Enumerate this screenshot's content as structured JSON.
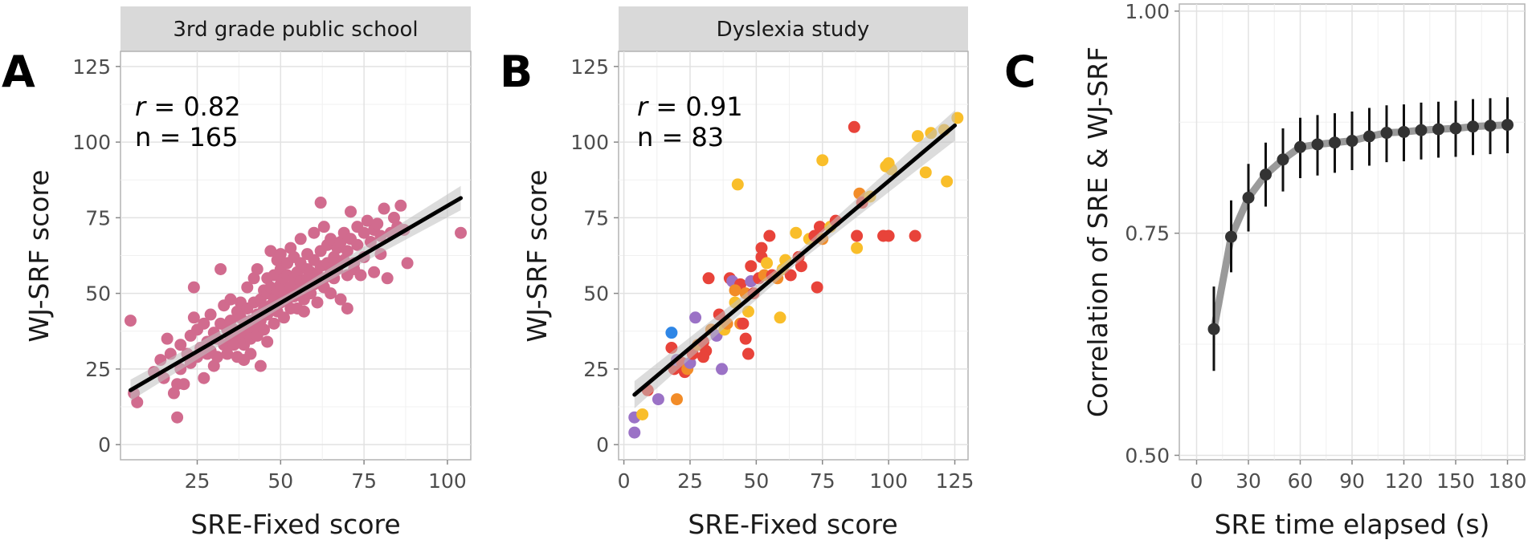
{
  "chart_data": [
    {
      "panel_label": "A",
      "type": "scatter",
      "strip_title": "3rd grade public school",
      "xlabel": "SRE-Fixed score",
      "ylabel": "WJ-SRF score",
      "xlim": [
        2,
        107
      ],
      "ylim": [
        -5,
        130
      ],
      "xticks": [
        25,
        50,
        75,
        100
      ],
      "yticks": [
        0,
        25,
        50,
        75,
        100,
        125
      ],
      "annotation": {
        "r_label": "r",
        "r_value": " = 0.82",
        "n_text": "n = 165"
      },
      "point_color": "#D16B8E",
      "fit_line": {
        "x": [
          5,
          104
        ],
        "y": [
          18,
          81.5
        ]
      },
      "points": [
        [
          5,
          41
        ],
        [
          6,
          17
        ],
        [
          7,
          14
        ],
        [
          12,
          24
        ],
        [
          14,
          28
        ],
        [
          15,
          22
        ],
        [
          16,
          35
        ],
        [
          17,
          30
        ],
        [
          18,
          17
        ],
        [
          19,
          9
        ],
        [
          19,
          20
        ],
        [
          20,
          25
        ],
        [
          20,
          33
        ],
        [
          21,
          20
        ],
        [
          22,
          30
        ],
        [
          23,
          27
        ],
        [
          23,
          36
        ],
        [
          24,
          52
        ],
        [
          24,
          42
        ],
        [
          25,
          29
        ],
        [
          25,
          38
        ],
        [
          26,
          32
        ],
        [
          27,
          40
        ],
        [
          27,
          22
        ],
        [
          28,
          34
        ],
        [
          29,
          31
        ],
        [
          29,
          43
        ],
        [
          30,
          37
        ],
        [
          30,
          26
        ],
        [
          31,
          29
        ],
        [
          31,
          35
        ],
        [
          32,
          58
        ],
        [
          32,
          40
        ],
        [
          33,
          33
        ],
        [
          33,
          46
        ],
        [
          34,
          38
        ],
        [
          34,
          30
        ],
        [
          35,
          41
        ],
        [
          35,
          35
        ],
        [
          35,
          48
        ],
        [
          36,
          33
        ],
        [
          36,
          38
        ],
        [
          37,
          44
        ],
        [
          37,
          29
        ],
        [
          38,
          36
        ],
        [
          38,
          42
        ],
        [
          38,
          47
        ],
        [
          39,
          39
        ],
        [
          39,
          33
        ],
        [
          40,
          37
        ],
        [
          40,
          45
        ],
        [
          40,
          52
        ],
        [
          41,
          41
        ],
        [
          41,
          35
        ],
        [
          41,
          30
        ],
        [
          42,
          47
        ],
        [
          42,
          39
        ],
        [
          42,
          55
        ],
        [
          43,
          43
        ],
        [
          43,
          36
        ],
        [
          43,
          58
        ],
        [
          44,
          48
        ],
        [
          44,
          41
        ],
        [
          44,
          26
        ],
        [
          45,
          45
        ],
        [
          45,
          51
        ],
        [
          45,
          38
        ],
        [
          46,
          50
        ],
        [
          46,
          43
        ],
        [
          46,
          55
        ],
        [
          47,
          46
        ],
        [
          47,
          52
        ],
        [
          47,
          64
        ],
        [
          48,
          48
        ],
        [
          48,
          56
        ],
        [
          48,
          40
        ],
        [
          49,
          51
        ],
        [
          49,
          44
        ],
        [
          49,
          61
        ],
        [
          50,
          53
        ],
        [
          50,
          47
        ],
        [
          50,
          58
        ],
        [
          50,
          63
        ],
        [
          51,
          50
        ],
        [
          51,
          55
        ],
        [
          51,
          42
        ],
        [
          52,
          48
        ],
        [
          52,
          56
        ],
        [
          52,
          60
        ],
        [
          53,
          52
        ],
        [
          53,
          45
        ],
        [
          53,
          65
        ],
        [
          54,
          55
        ],
        [
          54,
          49
        ],
        [
          54,
          62
        ],
        [
          55,
          57
        ],
        [
          55,
          51
        ],
        [
          55,
          45
        ],
        [
          56,
          54
        ],
        [
          56,
          60
        ],
        [
          56,
          68
        ],
        [
          57,
          52
        ],
        [
          57,
          48
        ],
        [
          58,
          58
        ],
        [
          58,
          55
        ],
        [
          58,
          63
        ],
        [
          59,
          50
        ],
        [
          59,
          57
        ],
        [
          60,
          61
        ],
        [
          60,
          53
        ],
        [
          60,
          70
        ],
        [
          61,
          56
        ],
        [
          61,
          47
        ],
        [
          62,
          59
        ],
        [
          62,
          64
        ],
        [
          62,
          80
        ],
        [
          63,
          55
        ],
        [
          63,
          52
        ],
        [
          63,
          72
        ],
        [
          64,
          60
        ],
        [
          64,
          66
        ],
        [
          65,
          57
        ],
        [
          65,
          50
        ],
        [
          65,
          68
        ],
        [
          66,
          62
        ],
        [
          66,
          55
        ],
        [
          67,
          65
        ],
        [
          67,
          58
        ],
        [
          68,
          67
        ],
        [
          68,
          48
        ],
        [
          69,
          61
        ],
        [
          69,
          70
        ],
        [
          70,
          56
        ],
        [
          70,
          64
        ],
        [
          71,
          68
        ],
        [
          71,
          77
        ],
        [
          72,
          58
        ],
        [
          72,
          60
        ],
        [
          73,
          72
        ],
        [
          73,
          66
        ],
        [
          74,
          56
        ],
        [
          75,
          62
        ],
        [
          75,
          70
        ],
        [
          76,
          74
        ],
        [
          77,
          67
        ],
        [
          78,
          57
        ],
        [
          78,
          71
        ],
        [
          79,
          73
        ],
        [
          80,
          69
        ],
        [
          80,
          63
        ],
        [
          81,
          78
        ],
        [
          82,
          55
        ],
        [
          83,
          70
        ],
        [
          84,
          75
        ],
        [
          85,
          72
        ],
        [
          86,
          79
        ],
        [
          87,
          71
        ],
        [
          88,
          60
        ],
        [
          104,
          70
        ],
        [
          46,
          34
        ],
        [
          39,
          28
        ],
        [
          28,
          30
        ],
        [
          57,
          44
        ],
        [
          66,
          60
        ],
        [
          70,
          45
        ]
      ]
    },
    {
      "panel_label": "B",
      "type": "scatter",
      "strip_title": "Dyslexia study",
      "xlabel": "SRE-Fixed score",
      "ylabel": "WJ-SRF score",
      "xlim": [
        -2,
        130
      ],
      "ylim": [
        -5,
        130
      ],
      "xticks": [
        0,
        25,
        50,
        75,
        100,
        125
      ],
      "yticks": [
        0,
        25,
        50,
        75,
        100,
        125
      ],
      "annotation": {
        "r_label": "r",
        "r_value": " = 0.91",
        "n_text": "n = 83"
      },
      "fit_line": {
        "x": [
          4,
          125
        ],
        "y": [
          16.5,
          105.5
        ]
      },
      "points": [
        [
          4,
          4,
          "#9B72C6"
        ],
        [
          4,
          9,
          "#9B72C6"
        ],
        [
          7,
          10,
          "#F9BE2A"
        ],
        [
          9,
          18,
          "#E8433A"
        ],
        [
          13,
          15,
          "#9B72C6"
        ],
        [
          18,
          37,
          "#2E86E6"
        ],
        [
          18,
          32,
          "#E8433A"
        ],
        [
          19,
          25,
          "#E8433A"
        ],
        [
          20,
          15,
          "#F28C28"
        ],
        [
          20,
          28,
          "#9B72C6"
        ],
        [
          22,
          27,
          "#E8433A"
        ],
        [
          23,
          24,
          "#E8433A"
        ],
        [
          24,
          25,
          "#F28C28"
        ],
        [
          25,
          27,
          "#9B72C6"
        ],
        [
          26,
          30,
          "#E8433A"
        ],
        [
          27,
          42,
          "#9B72C6"
        ],
        [
          28,
          33,
          "#F28C28"
        ],
        [
          30,
          34,
          "#E8433A"
        ],
        [
          31,
          31,
          "#E8433A"
        ],
        [
          32,
          55,
          "#E8433A"
        ],
        [
          33,
          38,
          "#F28C28"
        ],
        [
          35,
          36,
          "#9B72C6"
        ],
        [
          36,
          43,
          "#E8433A"
        ],
        [
          37,
          25,
          "#9B72C6"
        ],
        [
          38,
          38,
          "#F9BE2A"
        ],
        [
          39,
          40,
          "#F28C28"
        ],
        [
          40,
          55,
          "#E8433A"
        ],
        [
          41,
          54,
          "#9B72C6"
        ],
        [
          42,
          47,
          "#F9BE2A"
        ],
        [
          43,
          86,
          "#F9BE2A"
        ],
        [
          44,
          40,
          "#F28C28"
        ],
        [
          44,
          53,
          "#E8433A"
        ],
        [
          45,
          40,
          "#E8433A"
        ],
        [
          46,
          50,
          "#F28C28"
        ],
        [
          46,
          35,
          "#E8433A"
        ],
        [
          47,
          30,
          "#E8433A"
        ],
        [
          47,
          44,
          "#F9BE2A"
        ],
        [
          48,
          59,
          "#E8433A"
        ],
        [
          48,
          54,
          "#9B72C6"
        ],
        [
          49,
          50,
          "#E8433A"
        ],
        [
          51,
          55,
          "#E8433A"
        ],
        [
          52,
          62,
          "#E8433A"
        ],
        [
          52,
          65,
          "#E8433A"
        ],
        [
          53,
          56,
          "#F28C28"
        ],
        [
          54,
          60,
          "#F9BE2A"
        ],
        [
          55,
          69,
          "#E8433A"
        ],
        [
          56,
          56,
          "#E8433A"
        ],
        [
          58,
          55,
          "#F28C28"
        ],
        [
          59,
          42,
          "#F9BE2A"
        ],
        [
          60,
          58,
          "#F9BE2A"
        ],
        [
          61,
          61,
          "#F9BE2A"
        ],
        [
          63,
          56,
          "#E8433A"
        ],
        [
          65,
          70,
          "#F9BE2A"
        ],
        [
          67,
          59,
          "#E8433A"
        ],
        [
          70,
          68,
          "#F9BE2A"
        ],
        [
          72,
          69,
          "#E8433A"
        ],
        [
          73,
          52,
          "#E8433A"
        ],
        [
          74,
          72,
          "#E8433A"
        ],
        [
          75,
          94,
          "#F9BE2A"
        ],
        [
          75,
          68,
          "#F28C28"
        ],
        [
          78,
          72,
          "#F9BE2A"
        ],
        [
          80,
          74,
          "#E8433A"
        ],
        [
          87,
          105,
          "#E8433A"
        ],
        [
          88,
          65,
          "#F9BE2A"
        ],
        [
          88,
          69,
          "#E8433A"
        ],
        [
          89,
          83,
          "#F28C28"
        ],
        [
          90,
          80,
          "#E8433A"
        ],
        [
          93,
          82,
          "#F9BE2A"
        ],
        [
          98,
          69,
          "#E8433A"
        ],
        [
          99,
          92,
          "#F9BE2A"
        ],
        [
          100,
          69,
          "#E8433A"
        ],
        [
          100,
          93,
          "#F9BE2A"
        ],
        [
          101,
          91,
          "#F9BE2A"
        ],
        [
          110,
          69,
          "#E8433A"
        ],
        [
          111,
          102,
          "#F9BE2A"
        ],
        [
          114,
          90,
          "#F9BE2A"
        ],
        [
          116,
          103,
          "#F9BE2A"
        ],
        [
          121,
          104,
          "#F9BE2A"
        ],
        [
          122,
          87,
          "#F9BE2A"
        ],
        [
          126,
          108,
          "#F9BE2A"
        ],
        [
          30,
          29,
          "#E8433A"
        ],
        [
          42,
          51,
          "#F28C28"
        ],
        [
          66,
          62,
          "#E8433A"
        ]
      ]
    },
    {
      "panel_label": "C",
      "type": "line",
      "xlabel": "SRE time elapsed (s)",
      "ylabel": "Correlation of SRE & WJ-SRF",
      "xlim": [
        -10,
        190
      ],
      "ylim": [
        0.495,
        1.008
      ],
      "xticks": [
        0,
        30,
        60,
        90,
        120,
        150,
        180
      ],
      "yticks": [
        0.5,
        0.75,
        1.0
      ],
      "ytick_labels": [
        "0.50",
        "0.75",
        "1.00"
      ],
      "series": [
        {
          "name": "correlation",
          "x": [
            10,
            20,
            30,
            40,
            50,
            60,
            70,
            80,
            90,
            100,
            110,
            120,
            130,
            140,
            150,
            160,
            170,
            180
          ],
          "y": [
            0.642,
            0.746,
            0.79,
            0.816,
            0.833,
            0.847,
            0.85,
            0.852,
            0.854,
            0.859,
            0.863,
            0.864,
            0.866,
            0.867,
            0.868,
            0.87,
            0.871,
            0.872
          ],
          "err_low": [
            0.595,
            0.706,
            0.752,
            0.78,
            0.797,
            0.812,
            0.815,
            0.818,
            0.821,
            0.826,
            0.83,
            0.831,
            0.833,
            0.835,
            0.836,
            0.838,
            0.839,
            0.84
          ],
          "err_high": [
            0.69,
            0.787,
            0.828,
            0.852,
            0.868,
            0.88,
            0.883,
            0.885,
            0.887,
            0.891,
            0.894,
            0.895,
            0.897,
            0.898,
            0.899,
            0.901,
            0.902,
            0.903
          ]
        }
      ],
      "smooth_color": "#9a9a9a",
      "point_color": "#333333"
    }
  ]
}
